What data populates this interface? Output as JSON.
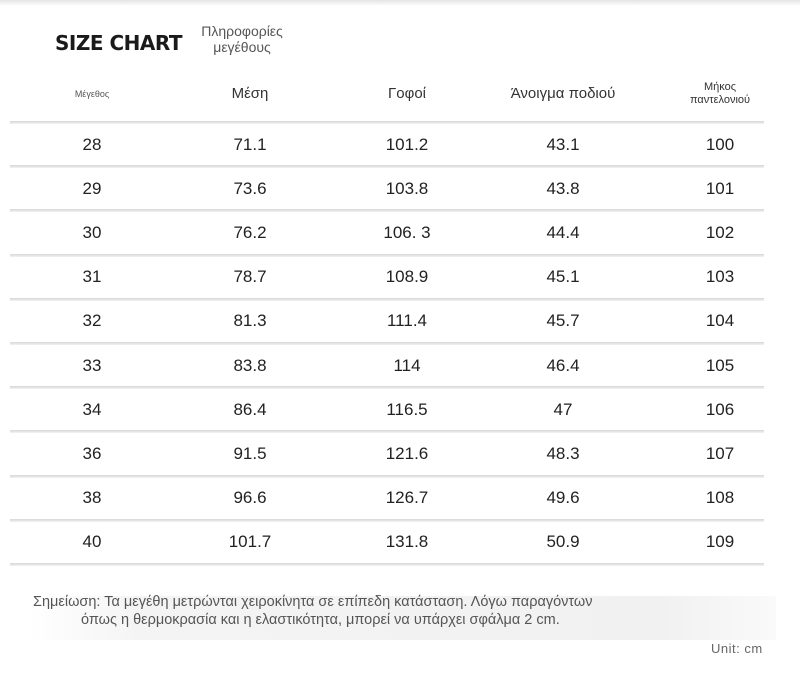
{
  "title": {
    "main": "SIZE CHART",
    "sub": "Πληροφορίες μεγέθους"
  },
  "headers": [
    "Μέγεθος",
    "Μέση",
    "Γοφοί",
    "Άνοιγμα ποδιού",
    "Μήκος παντελονιού"
  ],
  "rows": [
    [
      "28",
      "71.1",
      "101.2",
      "43.1",
      "100"
    ],
    [
      "29",
      "73.6",
      "103.8",
      "43.8",
      "101"
    ],
    [
      "30",
      "76.2",
      "106. 3",
      "44.4",
      "102"
    ],
    [
      "31",
      "78.7",
      "108.9",
      "45.1",
      "103"
    ],
    [
      "32",
      "81.3",
      "111.4",
      "45.7",
      "104"
    ],
    [
      "33",
      "83.8",
      "114",
      "46.4",
      "105"
    ],
    [
      "34",
      "86.4",
      "116.5",
      "47",
      "106"
    ],
    [
      "36",
      "91.5",
      "121.6",
      "48.3",
      "107"
    ],
    [
      "38",
      "96.6",
      "126.7",
      "49.6",
      "108"
    ],
    [
      "40",
      "101.7",
      "131.8",
      "50.9",
      "109"
    ]
  ],
  "note": {
    "line1": "Σημείωση: Τα μεγέθη μετρώνται χειροκίνητα σε επίπεδη κατάσταση. Λόγω παραγόντων",
    "line2": "όπως η θερμοκρασία και η ελαστικότητα, μπορεί να υπάρχει σφάλμα 2 cm."
  },
  "unit": "Unit: cm"
}
